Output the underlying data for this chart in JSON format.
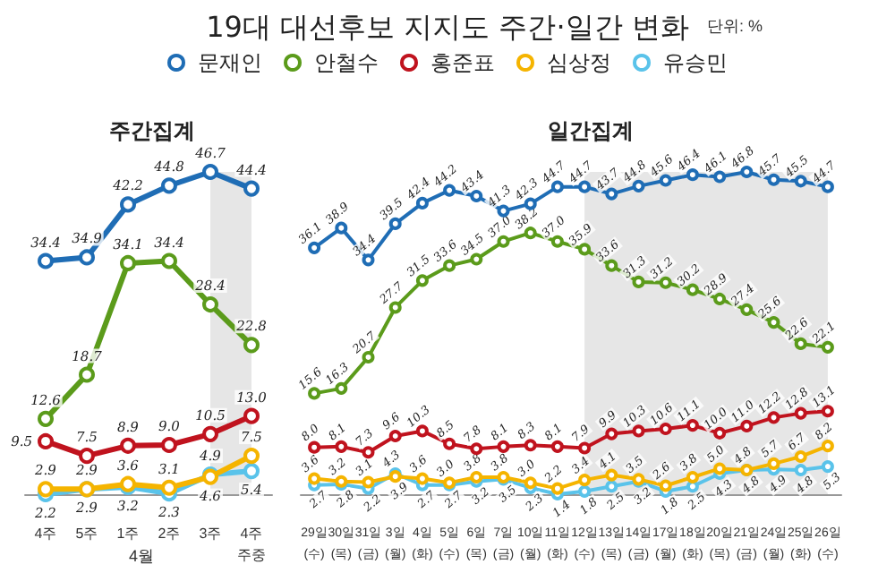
{
  "chart_data": [
    {
      "type": "line",
      "title": "19대 대선후보 지지도 주간·일간 변화",
      "subtitle": "주간집계",
      "annotations": [
        "단위: %",
        "4월"
      ],
      "tick_labels": "x",
      "marker": "circle",
      "legend": "top",
      "grid": false,
      "categories": [
        "4주",
        "5주",
        "1주",
        "2주",
        "3주",
        "4주\n주중"
      ],
      "bands": [
        {
          "axis": "x",
          "from": "3주",
          "to": "4주\n주중",
          "color": "#e6e6e6"
        }
      ],
      "series": [
        {
          "name": "문재인",
          "color": "#1f6db5",
          "values": [
            34.4,
            34.9,
            42.2,
            44.8,
            46.7,
            44.4
          ],
          "value_labels": [
            "34.4",
            "34.9",
            "42.2",
            "44.8",
            "46.7",
            "44.4"
          ]
        },
        {
          "name": "안철수",
          "color": "#5b9b1b",
          "values": [
            12.6,
            18.7,
            34.1,
            34.4,
            28.4,
            22.8
          ],
          "value_labels": [
            "12.6",
            "18.7",
            "34.1",
            "34.4",
            "28.4",
            "22.8"
          ]
        },
        {
          "name": "홍준표",
          "color": "#c0131e",
          "values": [
            9.5,
            7.5,
            8.9,
            9.0,
            10.5,
            13.0
          ],
          "value_labels": [
            "9.5",
            "7.5",
            "8.9",
            "9.0",
            "10.5",
            "13.0"
          ]
        },
        {
          "name": "심상정",
          "color": "#f5b400",
          "values": [
            2.9,
            2.9,
            3.6,
            3.1,
            4.6,
            7.5
          ],
          "value_labels": [
            "2.9",
            "2.9",
            "3.6",
            "3.1",
            "4.6",
            "7.5"
          ]
        },
        {
          "name": "유승민",
          "color": "#5ac3ea",
          "values": [
            2.2,
            2.9,
            3.2,
            2.3,
            4.9,
            5.4
          ],
          "value_labels": [
            "2.2",
            "2.9",
            "3.2",
            "2.3",
            "4.9",
            "5.4"
          ]
        }
      ]
    },
    {
      "type": "line",
      "subtitle": "일간집계",
      "tick_labels": "x",
      "marker": "circle",
      "legend": false,
      "grid": false,
      "categories": [
        "29일\n(수)",
        "30일\n(목)",
        "31일\n(금)",
        "3일\n(월)",
        "4일\n(화)",
        "5일\n(수)",
        "6일\n(목)",
        "7일\n(금)",
        "10일\n(월)",
        "11일\n(화)",
        "12일\n(수)",
        "13일\n(목)",
        "14일\n(금)",
        "17일\n(월)",
        "18일\n(화)",
        "20일\n(목)",
        "21일\n(금)",
        "24일\n(월)",
        "25일\n(화)",
        "26일\n(수)"
      ],
      "bands": [
        {
          "axis": "x",
          "from": "12일\n(수)",
          "to": "26일\n(수)",
          "color": "#e6e6e6"
        }
      ],
      "series": [
        {
          "color": "#1f6db5",
          "values": [
            36.1,
            38.9,
            34.4,
            39.5,
            42.4,
            44.2,
            43.4,
            41.3,
            42.3,
            44.7,
            44.7,
            43.7,
            44.8,
            45.6,
            46.4,
            46.1,
            46.8,
            45.7,
            45.5,
            44.7
          ],
          "value_labels": [
            "36.1",
            "38.9",
            "34.4",
            "39.5",
            "42.4",
            "44.2",
            "43.4",
            "41.3",
            "42.3",
            "44.7",
            "44.7",
            "43.7",
            "44.8",
            "45.6",
            "46.4",
            "46.1",
            "46.8",
            "45.7",
            "45.5",
            "44.7"
          ]
        },
        {
          "color": "#5b9b1b",
          "values": [
            15.6,
            16.3,
            20.7,
            27.7,
            31.5,
            33.6,
            34.5,
            37.0,
            38.2,
            37.0,
            35.9,
            33.6,
            31.3,
            31.2,
            30.2,
            28.9,
            27.4,
            25.6,
            22.6,
            22.1
          ],
          "value_labels": [
            "15.6",
            "16.3",
            "20.7",
            "27.7",
            "31.5",
            "33.6",
            "34.5",
            "37.0",
            "38.2",
            "37.0",
            "35.9",
            "33.6",
            "31.3",
            "31.2",
            "30.2",
            "28.9",
            "27.4",
            "25.6",
            "22.6",
            "22.1"
          ]
        },
        {
          "color": "#c0131e",
          "values": [
            8.0,
            8.1,
            7.3,
            9.6,
            10.3,
            8.5,
            7.8,
            8.1,
            8.3,
            8.1,
            7.9,
            9.9,
            10.3,
            10.6,
            11.1,
            10.0,
            11.0,
            12.2,
            12.8,
            13.1
          ],
          "value_labels": [
            "8.0",
            "8.1",
            "7.3",
            "9.6",
            "10.3",
            "8.5",
            "7.8",
            "8.1",
            "8.3",
            "8.1",
            "7.9",
            "9.9",
            "10.3",
            "10.6",
            "11.1",
            "10.0",
            "11.0",
            "12.2",
            "12.8",
            "13.1"
          ]
        },
        {
          "color": "#f5b400",
          "values": [
            3.6,
            3.2,
            3.1,
            3.9,
            3.6,
            3.0,
            3.8,
            3.8,
            3.0,
            2.2,
            3.4,
            4.1,
            3.5,
            2.6,
            3.8,
            5.0,
            4.8,
            5.7,
            6.7,
            8.2
          ],
          "value_labels": [
            "3.6",
            "3.2",
            "3.1",
            "3.9",
            "3.6",
            "3.0",
            "3.8",
            "3.8",
            "3.0",
            "2.2",
            "3.4",
            "4.1",
            "3.5",
            "2.6",
            "3.8",
            "5.0",
            "4.8",
            "5.7",
            "6.7",
            "8.2"
          ]
        },
        {
          "color": "#5ac3ea",
          "values": [
            2.7,
            2.8,
            2.2,
            4.3,
            2.7,
            2.7,
            3.2,
            3.5,
            2.3,
            1.4,
            1.8,
            2.5,
            3.2,
            1.8,
            2.5,
            4.3,
            4.8,
            4.9,
            4.8,
            5.3
          ],
          "value_labels": [
            "2.7",
            "2.8",
            "2.2",
            "4.3",
            "2.7",
            "2.7",
            "3.2",
            "3.5",
            "2.3",
            "1.4",
            "1.8",
            "2.5",
            "3.2",
            "1.8",
            "2.5",
            "4.3",
            "4.8",
            "4.9",
            "4.8",
            "5.3"
          ]
        }
      ]
    }
  ]
}
